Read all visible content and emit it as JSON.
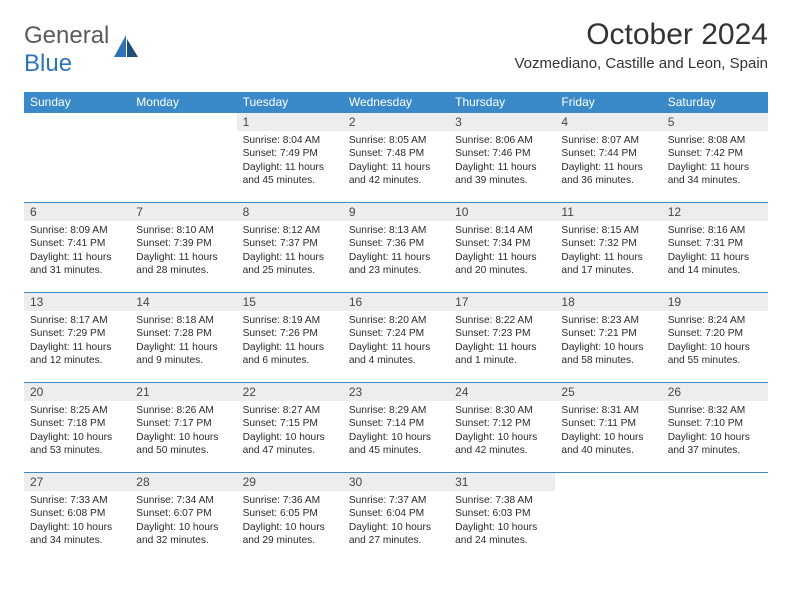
{
  "logo": {
    "general": "General",
    "blue": "Blue"
  },
  "title": "October 2024",
  "location": "Vozmediano, Castille and Leon, Spain",
  "day_headers": [
    "Sunday",
    "Monday",
    "Tuesday",
    "Wednesday",
    "Thursday",
    "Friday",
    "Saturday"
  ],
  "colors": {
    "header_bg": "#3a8ac9",
    "header_text": "#ffffff",
    "daynum_bg": "#ededed",
    "daynum_text": "#464646",
    "cell_border": "#3a8ac9",
    "body_text": "#2b2b2b",
    "logo_gray": "#5b5b5b",
    "logo_blue": "#2e74b5",
    "background": "#ffffff"
  },
  "fonts": {
    "title_size_pt": 22,
    "location_size_pt": 11,
    "header_size_pt": 9,
    "daynum_size_pt": 9,
    "body_size_pt": 7.5
  },
  "weeks": [
    [
      {
        "n": "",
        "sr": "",
        "ss": "",
        "dl": ""
      },
      {
        "n": "",
        "sr": "",
        "ss": "",
        "dl": ""
      },
      {
        "n": "1",
        "sr": "Sunrise: 8:04 AM",
        "ss": "Sunset: 7:49 PM",
        "dl": "Daylight: 11 hours and 45 minutes."
      },
      {
        "n": "2",
        "sr": "Sunrise: 8:05 AM",
        "ss": "Sunset: 7:48 PM",
        "dl": "Daylight: 11 hours and 42 minutes."
      },
      {
        "n": "3",
        "sr": "Sunrise: 8:06 AM",
        "ss": "Sunset: 7:46 PM",
        "dl": "Daylight: 11 hours and 39 minutes."
      },
      {
        "n": "4",
        "sr": "Sunrise: 8:07 AM",
        "ss": "Sunset: 7:44 PM",
        "dl": "Daylight: 11 hours and 36 minutes."
      },
      {
        "n": "5",
        "sr": "Sunrise: 8:08 AM",
        "ss": "Sunset: 7:42 PM",
        "dl": "Daylight: 11 hours and 34 minutes."
      }
    ],
    [
      {
        "n": "6",
        "sr": "Sunrise: 8:09 AM",
        "ss": "Sunset: 7:41 PM",
        "dl": "Daylight: 11 hours and 31 minutes."
      },
      {
        "n": "7",
        "sr": "Sunrise: 8:10 AM",
        "ss": "Sunset: 7:39 PM",
        "dl": "Daylight: 11 hours and 28 minutes."
      },
      {
        "n": "8",
        "sr": "Sunrise: 8:12 AM",
        "ss": "Sunset: 7:37 PM",
        "dl": "Daylight: 11 hours and 25 minutes."
      },
      {
        "n": "9",
        "sr": "Sunrise: 8:13 AM",
        "ss": "Sunset: 7:36 PM",
        "dl": "Daylight: 11 hours and 23 minutes."
      },
      {
        "n": "10",
        "sr": "Sunrise: 8:14 AM",
        "ss": "Sunset: 7:34 PM",
        "dl": "Daylight: 11 hours and 20 minutes."
      },
      {
        "n": "11",
        "sr": "Sunrise: 8:15 AM",
        "ss": "Sunset: 7:32 PM",
        "dl": "Daylight: 11 hours and 17 minutes."
      },
      {
        "n": "12",
        "sr": "Sunrise: 8:16 AM",
        "ss": "Sunset: 7:31 PM",
        "dl": "Daylight: 11 hours and 14 minutes."
      }
    ],
    [
      {
        "n": "13",
        "sr": "Sunrise: 8:17 AM",
        "ss": "Sunset: 7:29 PM",
        "dl": "Daylight: 11 hours and 12 minutes."
      },
      {
        "n": "14",
        "sr": "Sunrise: 8:18 AM",
        "ss": "Sunset: 7:28 PM",
        "dl": "Daylight: 11 hours and 9 minutes."
      },
      {
        "n": "15",
        "sr": "Sunrise: 8:19 AM",
        "ss": "Sunset: 7:26 PM",
        "dl": "Daylight: 11 hours and 6 minutes."
      },
      {
        "n": "16",
        "sr": "Sunrise: 8:20 AM",
        "ss": "Sunset: 7:24 PM",
        "dl": "Daylight: 11 hours and 4 minutes."
      },
      {
        "n": "17",
        "sr": "Sunrise: 8:22 AM",
        "ss": "Sunset: 7:23 PM",
        "dl": "Daylight: 11 hours and 1 minute."
      },
      {
        "n": "18",
        "sr": "Sunrise: 8:23 AM",
        "ss": "Sunset: 7:21 PM",
        "dl": "Daylight: 10 hours and 58 minutes."
      },
      {
        "n": "19",
        "sr": "Sunrise: 8:24 AM",
        "ss": "Sunset: 7:20 PM",
        "dl": "Daylight: 10 hours and 55 minutes."
      }
    ],
    [
      {
        "n": "20",
        "sr": "Sunrise: 8:25 AM",
        "ss": "Sunset: 7:18 PM",
        "dl": "Daylight: 10 hours and 53 minutes."
      },
      {
        "n": "21",
        "sr": "Sunrise: 8:26 AM",
        "ss": "Sunset: 7:17 PM",
        "dl": "Daylight: 10 hours and 50 minutes."
      },
      {
        "n": "22",
        "sr": "Sunrise: 8:27 AM",
        "ss": "Sunset: 7:15 PM",
        "dl": "Daylight: 10 hours and 47 minutes."
      },
      {
        "n": "23",
        "sr": "Sunrise: 8:29 AM",
        "ss": "Sunset: 7:14 PM",
        "dl": "Daylight: 10 hours and 45 minutes."
      },
      {
        "n": "24",
        "sr": "Sunrise: 8:30 AM",
        "ss": "Sunset: 7:12 PM",
        "dl": "Daylight: 10 hours and 42 minutes."
      },
      {
        "n": "25",
        "sr": "Sunrise: 8:31 AM",
        "ss": "Sunset: 7:11 PM",
        "dl": "Daylight: 10 hours and 40 minutes."
      },
      {
        "n": "26",
        "sr": "Sunrise: 8:32 AM",
        "ss": "Sunset: 7:10 PM",
        "dl": "Daylight: 10 hours and 37 minutes."
      }
    ],
    [
      {
        "n": "27",
        "sr": "Sunrise: 7:33 AM",
        "ss": "Sunset: 6:08 PM",
        "dl": "Daylight: 10 hours and 34 minutes."
      },
      {
        "n": "28",
        "sr": "Sunrise: 7:34 AM",
        "ss": "Sunset: 6:07 PM",
        "dl": "Daylight: 10 hours and 32 minutes."
      },
      {
        "n": "29",
        "sr": "Sunrise: 7:36 AM",
        "ss": "Sunset: 6:05 PM",
        "dl": "Daylight: 10 hours and 29 minutes."
      },
      {
        "n": "30",
        "sr": "Sunrise: 7:37 AM",
        "ss": "Sunset: 6:04 PM",
        "dl": "Daylight: 10 hours and 27 minutes."
      },
      {
        "n": "31",
        "sr": "Sunrise: 7:38 AM",
        "ss": "Sunset: 6:03 PM",
        "dl": "Daylight: 10 hours and 24 minutes."
      },
      {
        "n": "",
        "sr": "",
        "ss": "",
        "dl": ""
      },
      {
        "n": "",
        "sr": "",
        "ss": "",
        "dl": ""
      }
    ]
  ]
}
